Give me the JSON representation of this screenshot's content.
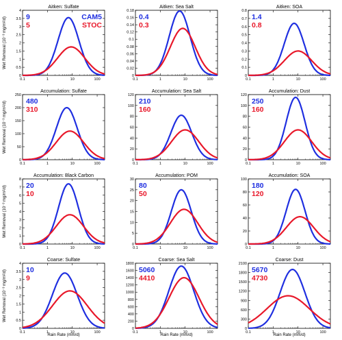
{
  "figure": {
    "ylabel": "Wet Removal (10⁻³ mg/m²/d)",
    "xlabel": "Rain Rate (mm/d)",
    "legend": [
      "CAM5",
      "STOC"
    ],
    "colors": {
      "CAM5": "#1f2fe0",
      "STOC": "#e8182a"
    }
  },
  "chart_data": [
    {
      "type": "line",
      "title": "Aitken: Sulfate",
      "xscale": "log",
      "xlim": [
        0.1,
        200
      ],
      "ylim": [
        0,
        4
      ],
      "yticks": [
        0,
        0.5,
        1,
        1.5,
        2,
        2.5,
        3,
        3.5,
        4
      ],
      "labels": [
        "9",
        "5"
      ],
      "series": [
        {
          "name": "CAM5",
          "peak_x": 7,
          "peak_y": 3.55,
          "width": 0.42
        },
        {
          "name": "STOC",
          "peak_x": 9,
          "peak_y": 1.75,
          "width": 0.55
        }
      ]
    },
    {
      "type": "line",
      "title": "Aitken: Sea Salt",
      "xscale": "log",
      "xlim": [
        0.1,
        200
      ],
      "ylim": [
        0,
        0.18
      ],
      "yticks": [
        0,
        0.02,
        0.04,
        0.06,
        0.08,
        0.1,
        0.12,
        0.14,
        0.16,
        0.18
      ],
      "labels": [
        "0.4",
        "0.3"
      ],
      "series": [
        {
          "name": "CAM5",
          "peak_x": 6,
          "peak_y": 0.178,
          "width": 0.42
        },
        {
          "name": "STOC",
          "peak_x": 8,
          "peak_y": 0.13,
          "width": 0.5
        }
      ]
    },
    {
      "type": "line",
      "title": "Aitken: SOA",
      "xscale": "log",
      "xlim": [
        0.1,
        200
      ],
      "ylim": [
        0,
        0.8
      ],
      "yticks": [
        0,
        0.1,
        0.2,
        0.3,
        0.4,
        0.5,
        0.6,
        0.7,
        0.8
      ],
      "labels": [
        "1.4",
        "0.8"
      ],
      "series": [
        {
          "name": "CAM5",
          "peak_x": 7,
          "peak_y": 0.64,
          "width": 0.4
        },
        {
          "name": "STOC",
          "peak_x": 10,
          "peak_y": 0.3,
          "width": 0.55
        }
      ]
    },
    {
      "type": "line",
      "title": "Accumulation: Sulfate",
      "xscale": "log",
      "xlim": [
        0.1,
        200
      ],
      "ylim": [
        0,
        250
      ],
      "yticks": [
        0,
        50,
        100,
        150,
        200,
        250
      ],
      "labels": [
        "480",
        "310"
      ],
      "series": [
        {
          "name": "CAM5",
          "peak_x": 6,
          "peak_y": 200,
          "width": 0.42
        },
        {
          "name": "STOC",
          "peak_x": 8,
          "peak_y": 110,
          "width": 0.55
        }
      ]
    },
    {
      "type": "line",
      "title": "Accumulation: Sea Salt",
      "xscale": "log",
      "xlim": [
        0.1,
        200
      ],
      "ylim": [
        0,
        120
      ],
      "yticks": [
        0,
        20,
        40,
        60,
        80,
        100,
        120
      ],
      "labels": [
        "210",
        "160"
      ],
      "series": [
        {
          "name": "CAM5",
          "peak_x": 7,
          "peak_y": 82,
          "width": 0.42
        },
        {
          "name": "STOC",
          "peak_x": 10,
          "peak_y": 55,
          "width": 0.55
        }
      ]
    },
    {
      "type": "line",
      "title": "Accumulation: Dust",
      "xscale": "log",
      "xlim": [
        0.1,
        200
      ],
      "ylim": [
        0,
        120
      ],
      "yticks": [
        0,
        20,
        40,
        60,
        80,
        100,
        120
      ],
      "labels": [
        "250",
        "160"
      ],
      "series": [
        {
          "name": "CAM5",
          "peak_x": 8,
          "peak_y": 115,
          "width": 0.38
        },
        {
          "name": "STOC",
          "peak_x": 10,
          "peak_y": 55,
          "width": 0.55
        }
      ]
    },
    {
      "type": "line",
      "title": "Accumulation: Black Carbon",
      "xscale": "log",
      "xlim": [
        0.1,
        200
      ],
      "ylim": [
        0,
        8
      ],
      "yticks": [
        0,
        1,
        2,
        3,
        4,
        5,
        6,
        7,
        8
      ],
      "labels": [
        "20",
        "10"
      ],
      "series": [
        {
          "name": "CAM5",
          "peak_x": 7,
          "peak_y": 7.4,
          "width": 0.4
        },
        {
          "name": "STOC",
          "peak_x": 8,
          "peak_y": 3.6,
          "width": 0.55
        }
      ]
    },
    {
      "type": "line",
      "title": "Accumulation: POM",
      "xscale": "log",
      "xlim": [
        0.1,
        200
      ],
      "ylim": [
        0,
        30
      ],
      "yticks": [
        0,
        5,
        10,
        15,
        20,
        25,
        30
      ],
      "labels": [
        "80",
        "50"
      ],
      "series": [
        {
          "name": "CAM5",
          "peak_x": 7,
          "peak_y": 25,
          "width": 0.4
        },
        {
          "name": "STOC",
          "peak_x": 9,
          "peak_y": 16,
          "width": 0.55
        }
      ]
    },
    {
      "type": "line",
      "title": "Accumulation: SOA",
      "xscale": "log",
      "xlim": [
        0.1,
        200
      ],
      "ylim": [
        0,
        100
      ],
      "yticks": [
        0,
        20,
        40,
        60,
        80,
        100
      ],
      "labels": [
        "180",
        "120"
      ],
      "series": [
        {
          "name": "CAM5",
          "peak_x": 8,
          "peak_y": 84,
          "width": 0.38
        },
        {
          "name": "STOC",
          "peak_x": 12,
          "peak_y": 42,
          "width": 0.55
        }
      ]
    },
    {
      "type": "line",
      "title": "Coarse: Sulfate",
      "xscale": "log",
      "xlim": [
        0.1,
        200
      ],
      "ylim": [
        0,
        4
      ],
      "yticks": [
        0,
        0.5,
        1,
        1.5,
        2,
        2.5,
        3,
        3.5,
        4
      ],
      "labels": [
        "10",
        "9"
      ],
      "series": [
        {
          "name": "CAM5",
          "peak_x": 5,
          "peak_y": 3.4,
          "width": 0.5
        },
        {
          "name": "STOC",
          "peak_x": 8,
          "peak_y": 2.3,
          "width": 0.7
        }
      ]
    },
    {
      "type": "line",
      "title": "Coarse: Sea Salt",
      "xscale": "log",
      "xlim": [
        0.1,
        200
      ],
      "ylim": [
        0,
        1800
      ],
      "yticks": [
        0,
        200,
        400,
        600,
        800,
        1000,
        1200,
        1400,
        1600,
        1800
      ],
      "labels": [
        "5060",
        "4410"
      ],
      "series": [
        {
          "name": "CAM5",
          "peak_x": 7,
          "peak_y": 1720,
          "width": 0.5
        },
        {
          "name": "STOC",
          "peak_x": 9,
          "peak_y": 1400,
          "width": 0.6
        }
      ]
    },
    {
      "type": "line",
      "title": "Coarse: Dust",
      "xscale": "log",
      "xlim": [
        0.1,
        200
      ],
      "ylim": [
        0,
        2100
      ],
      "yticks": [
        0,
        300,
        600,
        900,
        1200,
        1500,
        1800,
        2100
      ],
      "labels": [
        "5670",
        "4730"
      ],
      "series": [
        {
          "name": "CAM5",
          "peak_x": 6,
          "peak_y": 1900,
          "width": 0.5
        },
        {
          "name": "STOC",
          "peak_x": 4,
          "peak_y": 1050,
          "width": 0.85
        }
      ]
    }
  ]
}
